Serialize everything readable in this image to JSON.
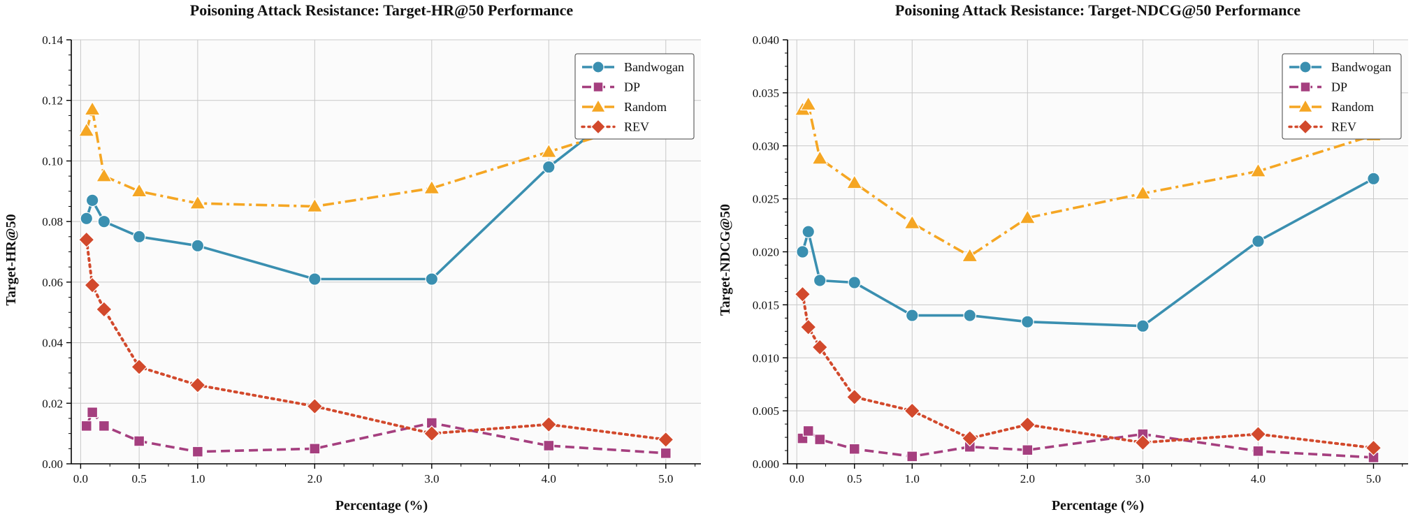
{
  "colors": {
    "Bandwogan": "#3a8fb0",
    "DP": "#a53f7f",
    "Random": "#f5a623",
    "REV": "#d2492c"
  },
  "chart_data": [
    {
      "type": "line",
      "title": "Poisoning Attack Resistance: Target-HR@50 Performance",
      "xlabel": "Percentage (%)",
      "ylabel": "Target-HR@50",
      "xlim": [
        -0.08,
        5.3
      ],
      "ylim": [
        0,
        0.14
      ],
      "xticks": [
        0.0,
        0.5,
        1.0,
        2.0,
        3.0,
        4.0,
        5.0
      ],
      "xtick_labels": [
        "0.0",
        "0.5",
        "1.0",
        "2.0",
        "3.0",
        "4.0",
        "5.0"
      ],
      "yticks": [
        0,
        0.02,
        0.04,
        0.06,
        0.08,
        0.1,
        0.12,
        0.14
      ],
      "ytick_labels": [
        "0.00",
        "0.02",
        "0.04",
        "0.06",
        "0.08",
        "0.10",
        "0.12",
        "0.14"
      ],
      "grid": true,
      "legend_position": "top-right",
      "x": [
        0.05,
        0.1,
        0.2,
        0.5,
        1.0,
        2.0,
        3.0,
        4.0,
        5.0
      ],
      "series": [
        {
          "name": "Bandwogan",
          "style": "solid",
          "marker": "circle",
          "values": [
            0.081,
            0.087,
            0.08,
            0.075,
            0.072,
            0.061,
            0.061,
            0.098,
            0.128
          ]
        },
        {
          "name": "DP",
          "style": "dashed",
          "marker": "square",
          "values": [
            0.0125,
            0.017,
            0.0125,
            0.0075,
            0.004,
            0.005,
            0.0135,
            0.006,
            0.0035
          ]
        },
        {
          "name": "Random",
          "style": "dashdot",
          "marker": "triangle",
          "values": [
            0.11,
            0.117,
            0.095,
            0.09,
            0.086,
            0.085,
            0.091,
            0.103,
            0.115
          ]
        },
        {
          "name": "REV",
          "style": "dotted",
          "marker": "diamond",
          "values": [
            0.074,
            0.059,
            0.051,
            0.032,
            0.026,
            0.019,
            0.01,
            0.013,
            0.008
          ]
        }
      ]
    },
    {
      "type": "line",
      "title": "Poisoning Attack Resistance: Target-NDCG@50 Performance",
      "xlabel": "Percentage (%)",
      "ylabel": "Target-NDCG@50",
      "xlim": [
        -0.08,
        5.3
      ],
      "ylim": [
        0,
        0.04
      ],
      "xticks": [
        0.0,
        0.5,
        1.0,
        2.0,
        3.0,
        4.0,
        5.0
      ],
      "xtick_labels": [
        "0.0",
        "0.5",
        "1.0",
        "2.0",
        "3.0",
        "4.0",
        "5.0"
      ],
      "yticks": [
        0,
        0.005,
        0.01,
        0.015,
        0.02,
        0.025,
        0.03,
        0.035,
        0.04
      ],
      "ytick_labels": [
        "0.000",
        "0.005",
        "0.010",
        "0.015",
        "0.020",
        "0.025",
        "0.030",
        "0.035",
        "0.040"
      ],
      "grid": true,
      "legend_position": "top-right",
      "x": [
        0.05,
        0.1,
        0.2,
        0.5,
        1.0,
        1.5,
        2.0,
        3.0,
        4.0,
        5.0
      ],
      "series": [
        {
          "name": "Bandwogan",
          "style": "solid",
          "marker": "circle",
          "values": [
            0.02,
            0.0219,
            0.0173,
            0.0171,
            0.014,
            0.014,
            0.0134,
            0.013,
            0.021,
            0.0269
          ]
        },
        {
          "name": "DP",
          "style": "dashed",
          "marker": "square",
          "values": [
            0.0024,
            0.0031,
            0.0023,
            0.0014,
            0.0007,
            0.0016,
            0.0013,
            0.0028,
            0.0012,
            0.0006
          ]
        },
        {
          "name": "Random",
          "style": "dashdot",
          "marker": "triangle",
          "values": [
            0.0334,
            0.0339,
            0.0288,
            0.0265,
            0.0227,
            0.0196,
            0.0232,
            0.0255,
            0.0276,
            0.031
          ]
        },
        {
          "name": "REV",
          "style": "dotted",
          "marker": "diamond",
          "values": [
            0.016,
            0.0129,
            0.011,
            0.0063,
            0.005,
            0.0024,
            0.0037,
            0.002,
            0.0028,
            0.0015
          ]
        }
      ]
    }
  ]
}
